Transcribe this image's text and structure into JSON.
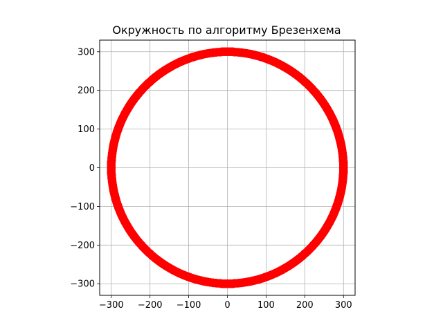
{
  "chart_data": {
    "type": "scatter",
    "title": "Окружность по алгоритму Брезенхема",
    "xlabel": "",
    "ylabel": "",
    "xlim": [
      -330,
      330
    ],
    "ylim": [
      -330,
      330
    ],
    "x_ticks": [
      -300,
      -200,
      -100,
      0,
      100,
      200,
      300
    ],
    "y_ticks": [
      -300,
      -200,
      -100,
      0,
      100,
      200,
      300
    ],
    "x_tick_labels": [
      "−300",
      "−200",
      "−100",
      "0",
      "100",
      "200",
      "300"
    ],
    "y_tick_labels": [
      "−300",
      "−200",
      "−100",
      "0",
      "100",
      "200",
      "300"
    ],
    "grid": true,
    "aspect": "equal",
    "series": [
      {
        "color": "#ff0000",
        "marker": "circle",
        "center": [
          0,
          0
        ],
        "radius": 300,
        "algorithm": "Bresenham midpoint circle"
      }
    ]
  }
}
